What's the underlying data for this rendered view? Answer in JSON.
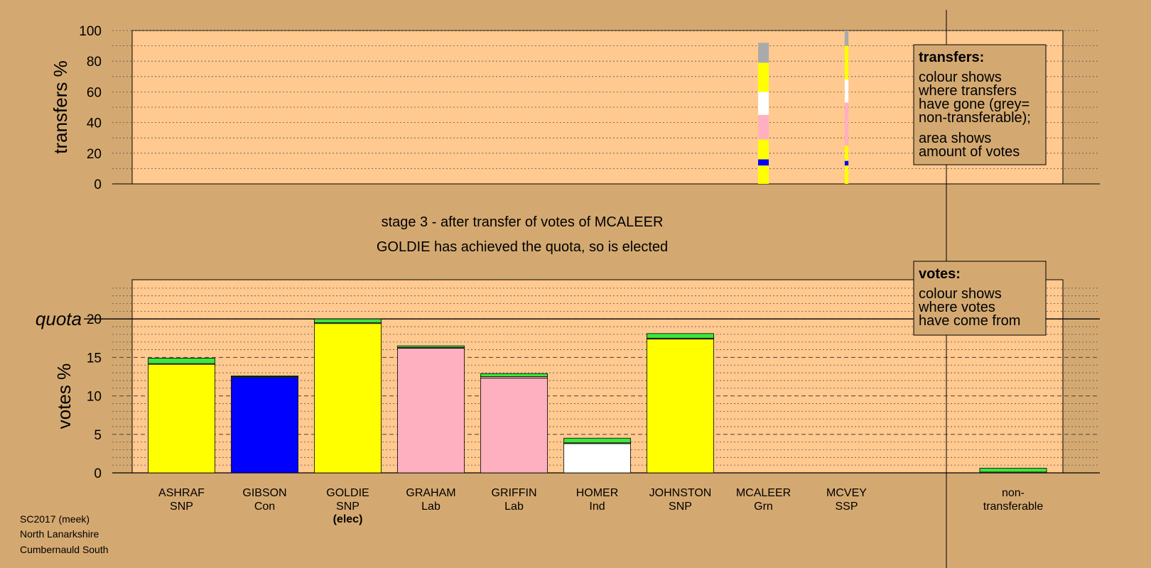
{
  "stage": {
    "line1": "stage 3 - after transfer of votes of MCALEER",
    "line2": "GOLDIE has achieved the quota, so is elected"
  },
  "footer": [
    "SC2017 (meek)",
    "North Lanarkshire",
    "Cumbernauld South"
  ],
  "legends": {
    "transfers": {
      "title": "transfers:",
      "lines": [
        "colour shows",
        "where transfers",
        "have gone (grey=",
        "non-transferable);",
        "area shows",
        "amount of votes"
      ]
    },
    "votes": {
      "title": "votes:",
      "lines": [
        "colour shows",
        "where votes",
        "have come from"
      ]
    }
  },
  "colors": {
    "background": "#d4a971",
    "plot_bg": "#ffc98f",
    "SNP": "#ffff00",
    "Con": "#0000ff",
    "Lab": "#ffb0c0",
    "Ind": "#ffffff",
    "Grn": "#3ce63c",
    "SSP": "#ffb0c0",
    "nontransferable": "#aaaaaa"
  },
  "chart_data": [
    {
      "type": "bar",
      "role": "transfers",
      "ylabel": "transfers %",
      "ylim": [
        0,
        100
      ],
      "yticks": [
        0,
        20,
        40,
        60,
        80,
        100
      ],
      "columns": [
        {
          "candidate": "MCALEER",
          "width": 1.0,
          "segments": [
            {
              "party": "SNP",
              "value": 12
            },
            {
              "party": "Con",
              "value": 4
            },
            {
              "party": "SNP",
              "value": 13
            },
            {
              "party": "Lab",
              "value": 16
            },
            {
              "party": "Ind",
              "value": 15
            },
            {
              "party": "SNP",
              "value": 19
            },
            {
              "party": "nontransferable",
              "value": 13
            }
          ]
        },
        {
          "candidate": "MCVEY",
          "width": 0.35,
          "segments": [
            {
              "party": "SNP",
              "value": 12
            },
            {
              "party": "Con",
              "value": 3
            },
            {
              "party": "SNP",
              "value": 10
            },
            {
              "party": "Lab",
              "value": 28
            },
            {
              "party": "Ind",
              "value": 15
            },
            {
              "party": "SNP",
              "value": 22
            },
            {
              "party": "nontransferable",
              "value": 10
            }
          ]
        }
      ]
    },
    {
      "type": "bar",
      "role": "votes",
      "ylabel": "votes %",
      "ylim": [
        0,
        25
      ],
      "yticks": [
        0,
        5,
        10,
        15,
        20
      ],
      "quota": 20,
      "quota_label": "quota",
      "categories": [
        {
          "name": "ASHRAF",
          "party": "SNP",
          "first_pref": 14.1,
          "from_grn": 0.7,
          "from_ssp": 0.1
        },
        {
          "name": "GIBSON",
          "party": "Con",
          "first_pref": 12.4,
          "from_grn": 0.1,
          "from_ssp": 0.1
        },
        {
          "name": "GOLDIE",
          "party": "SNP",
          "note": "(elec)",
          "first_pref": 19.4,
          "from_grn": 0.5,
          "from_ssp": 0.1
        },
        {
          "name": "GRAHAM",
          "party": "Lab",
          "first_pref": 16.2,
          "from_grn": 0.2,
          "from_ssp": 0.1
        },
        {
          "name": "GRIFFIN",
          "party": "Lab",
          "first_pref": 12.3,
          "from_grn": 0.4,
          "from_ssp": 0.2
        },
        {
          "name": "HOMER",
          "party": "Ind",
          "first_pref": 3.8,
          "from_grn": 0.6,
          "from_ssp": 0.1
        },
        {
          "name": "JOHNSTON",
          "party": "SNP",
          "first_pref": 17.4,
          "from_grn": 0.6,
          "from_ssp": 0.1
        },
        {
          "name": "MCALEER",
          "party": "Grn",
          "first_pref": 0,
          "from_grn": 0,
          "from_ssp": 0
        },
        {
          "name": "MCVEY",
          "party": "SSP",
          "first_pref": 0,
          "from_grn": 0,
          "from_ssp": 0
        }
      ],
      "nontransferable": {
        "label1": "non-",
        "label2": "transferable",
        "first_pref": 0,
        "from_grn": 0.5,
        "from_ssp": 0.1
      }
    }
  ]
}
